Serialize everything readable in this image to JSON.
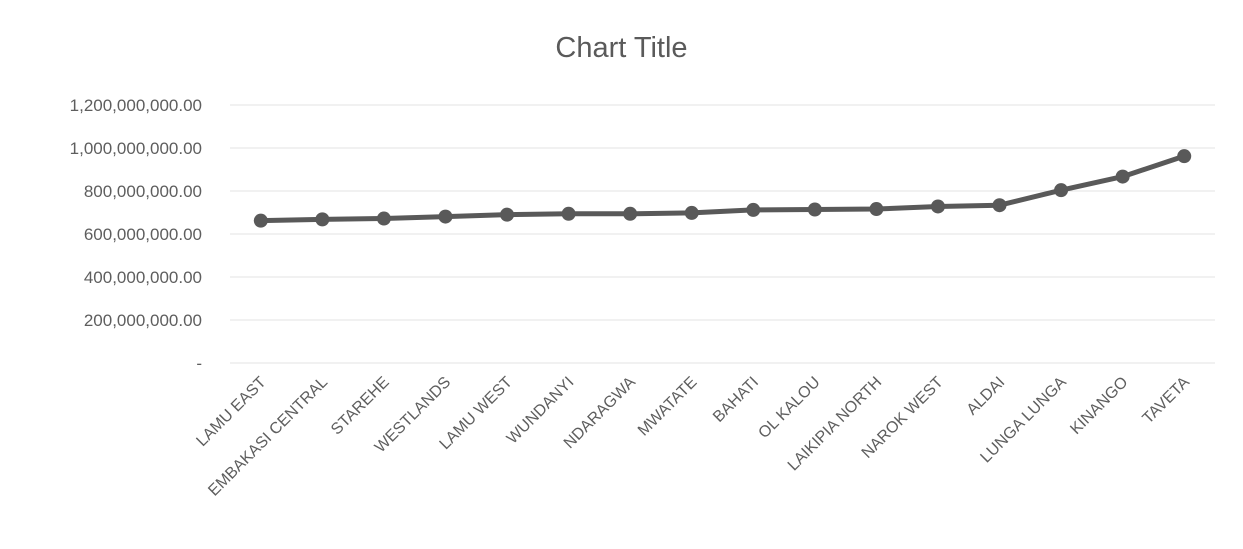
{
  "chart_data": {
    "type": "line",
    "title": "Chart Title",
    "xlabel": "",
    "ylabel": "",
    "categories": [
      "LAMU EAST",
      "EMBAKASI CENTRAL",
      "STAREHE",
      "WESTLANDS",
      "LAMU WEST",
      "WUNDANYI",
      "NDARAGWA",
      "MWATATE",
      "BAHATI",
      "OL KALOU",
      "LAIKIPIA NORTH",
      "NAROK WEST",
      "ALDAI",
      "LUNGA LUNGA",
      "KINANGO",
      "TAVETA"
    ],
    "series": [
      {
        "values": [
          662000000,
          668000000,
          672000000,
          681000000,
          690000000,
          694000000,
          694000000,
          698000000,
          712000000,
          714000000,
          716000000,
          728000000,
          734000000,
          804000000,
          867000000,
          962000000
        ]
      }
    ],
    "ylim": [
      0,
      1200000000
    ],
    "yticks": [
      {
        "value": 0,
        "label": "-"
      },
      {
        "value": 200000000,
        "label": "200,000,000.00"
      },
      {
        "value": 400000000,
        "label": "400,000,000.00"
      },
      {
        "value": 600000000,
        "label": "600,000,000.00"
      },
      {
        "value": 800000000,
        "label": "800,000,000.00"
      },
      {
        "value": 1000000000,
        "label": "1,000,000,000.00"
      },
      {
        "value": 1200000000,
        "label": "1,200,000,000.00"
      }
    ],
    "grid": true,
    "legend": "none",
    "colors": {
      "line": "#595959",
      "marker": "#595959",
      "grid": "#e3e3e3",
      "text": "#5e5e5e"
    }
  }
}
